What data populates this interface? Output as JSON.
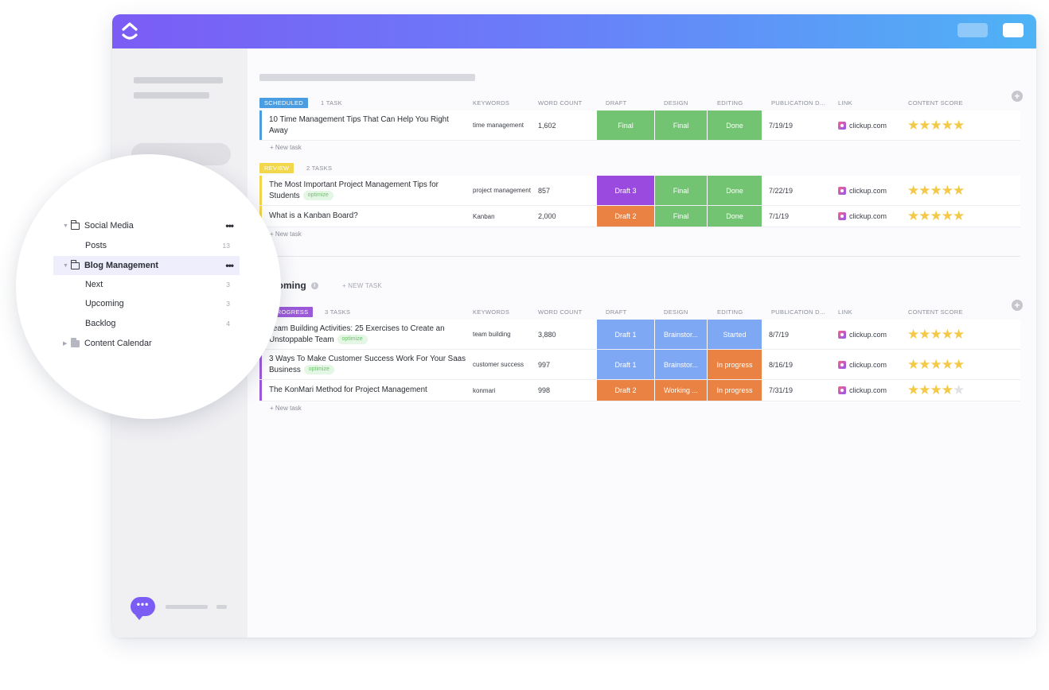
{
  "colors": {
    "scheduled": "#4a9de0",
    "review": "#f2d64b",
    "in_progress": "#9b59d9",
    "green": "#72c472",
    "purple": "#9b4ae0",
    "orange": "#e98243",
    "blue": "#7ea7f4",
    "star": "#f3c947"
  },
  "columns": {
    "keywords": "KEYWORDS",
    "word_count": "WORD COUNT",
    "draft": "DRAFT",
    "design": "DESIGN",
    "editing": "EDITING",
    "publication": "PUBLICATION D...",
    "link": "LINK",
    "content_score": "CONTENT SCORE"
  },
  "new_task_row": "+ New task",
  "groups": [
    {
      "status": "SCHEDULED",
      "task_count": "1 TASK",
      "rows": [
        {
          "name": "10 Time Management Tips That Can Help You Right Away",
          "tag": "",
          "keywords": "time management",
          "word_count": "1,602",
          "draft": "Final",
          "design": "Final",
          "editing": "Done",
          "date": "7/19/19",
          "link": "clickup.com",
          "score": 5
        }
      ]
    },
    {
      "status": "REVIEW",
      "task_count": "2 TASKS",
      "rows": [
        {
          "name": "The Most Important Project Management Tips for Students",
          "tag": "optimize",
          "keywords": "project management",
          "word_count": "857",
          "draft": "Draft 3",
          "design": "Final",
          "editing": "Done",
          "date": "7/22/19",
          "link": "clickup.com",
          "score": 5
        },
        {
          "name": "What is a Kanban Board?",
          "tag": "",
          "keywords": "Kanban",
          "word_count": "2,000",
          "draft": "Draft 2",
          "design": "Final",
          "editing": "Done",
          "date": "7/1/19",
          "link": "clickup.com",
          "score": 5
        }
      ]
    }
  ],
  "upcoming": {
    "title": "Upcoming",
    "new_task": "+ NEW TASK",
    "status": "IN PROGRESS",
    "task_count": "3 TASKS",
    "rows": [
      {
        "name": "Team Building Activities: 25 Exercises to Create an Unstoppable Team",
        "tag": "optimize",
        "keywords": "team building",
        "word_count": "3,880",
        "draft": "Draft 1",
        "design": "Brainstor...",
        "editing": "Started",
        "date": "8/7/19",
        "link": "clickup.com",
        "score": 5
      },
      {
        "name": "3 Ways To Make Customer Success Work For Your Saas Business",
        "tag": "optimize",
        "keywords": "customer success",
        "word_count": "997",
        "draft": "Draft 1",
        "design": "Brainstor...",
        "editing": "In progress",
        "date": "8/16/19",
        "link": "clickup.com",
        "score": 5
      },
      {
        "name": "The KonMari Method for Project Management",
        "tag": "",
        "keywords": "konmari",
        "word_count": "998",
        "draft": "Draft 2",
        "design": "Working ...",
        "editing": "In progress",
        "date": "7/31/19",
        "link": "clickup.com",
        "score": 4
      }
    ]
  },
  "sidebar_zoom": {
    "items": [
      {
        "label": "Social Media",
        "type": "folder"
      },
      {
        "label": "Posts",
        "count": "13",
        "type": "list"
      },
      {
        "label": "Blog Management",
        "type": "folder"
      },
      {
        "label": "Next",
        "count": "3",
        "type": "list"
      },
      {
        "label": "Upcoming",
        "count": "3",
        "type": "list"
      },
      {
        "label": "Backlog",
        "count": "4",
        "type": "list"
      },
      {
        "label": "Content Calendar",
        "type": "folder"
      }
    ],
    "more_icon": "•••"
  },
  "chat_icon": "•••"
}
